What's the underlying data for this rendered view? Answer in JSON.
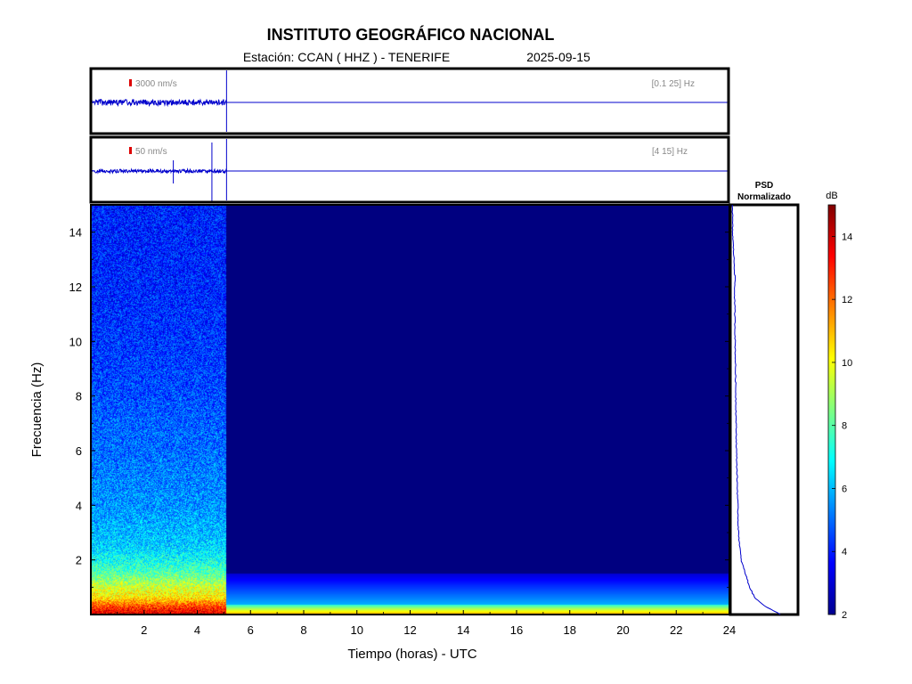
{
  "header": {
    "title": "INSTITUTO GEOGRÁFICO NACIONAL",
    "station_text": "Estación:  CCAN ( HHZ ) - TENERIFE",
    "date": "2025-09-15"
  },
  "trace_top": {
    "scale_label": "3000 nm/s",
    "band_label": "[0.1 25] Hz"
  },
  "trace_bottom": {
    "scale_label": "50 nm/s",
    "band_label": "[4 15] Hz"
  },
  "psd": {
    "title_line1": "PSD",
    "title_line2": "Normalizado"
  },
  "colorbar": {
    "unit": "dB",
    "min": 2,
    "max": 15,
    "ticks": [
      "2",
      "4",
      "6",
      "8",
      "10",
      "12",
      "14"
    ]
  },
  "colors": {
    "trace": "#0000cc",
    "no_data": "#000080",
    "scale_marker": "#dd0000"
  },
  "chart_data": {
    "type": "heatmap",
    "xlabel": "Tiempo (horas) - UTC",
    "ylabel": "Frecuencia  (Hz)",
    "xlim": [
      0,
      24
    ],
    "ylim": [
      0,
      15
    ],
    "x_ticks": [
      "2",
      "4",
      "6",
      "8",
      "10",
      "12",
      "14",
      "16",
      "18",
      "20",
      "22",
      "24"
    ],
    "y_ticks": [
      "2",
      "4",
      "6",
      "8",
      "10",
      "12",
      "14"
    ],
    "data_end_hour": 5.1,
    "spectrum_profile": {
      "freq_hz": [
        0,
        0.3,
        0.6,
        1,
        1.5,
        2,
        2.5,
        3,
        4,
        5,
        6,
        7,
        8,
        10,
        12,
        15
      ],
      "db": [
        14,
        12.5,
        10.5,
        9.5,
        8,
        7,
        6.3,
        6,
        5.5,
        5.3,
        5,
        4.9,
        4.6,
        4.3,
        4.1,
        4
      ]
    },
    "psd_normalized": {
      "freq_hz": [
        0,
        0.3,
        0.6,
        1,
        2,
        3,
        4,
        5,
        6,
        8,
        10,
        12,
        12.2,
        14,
        15
      ],
      "value": [
        0.75,
        0.52,
        0.36,
        0.28,
        0.15,
        0.11,
        0.1,
        0.09,
        0.08,
        0.07,
        0.06,
        0.05,
        0.06,
        0.02,
        0.02
      ]
    }
  }
}
